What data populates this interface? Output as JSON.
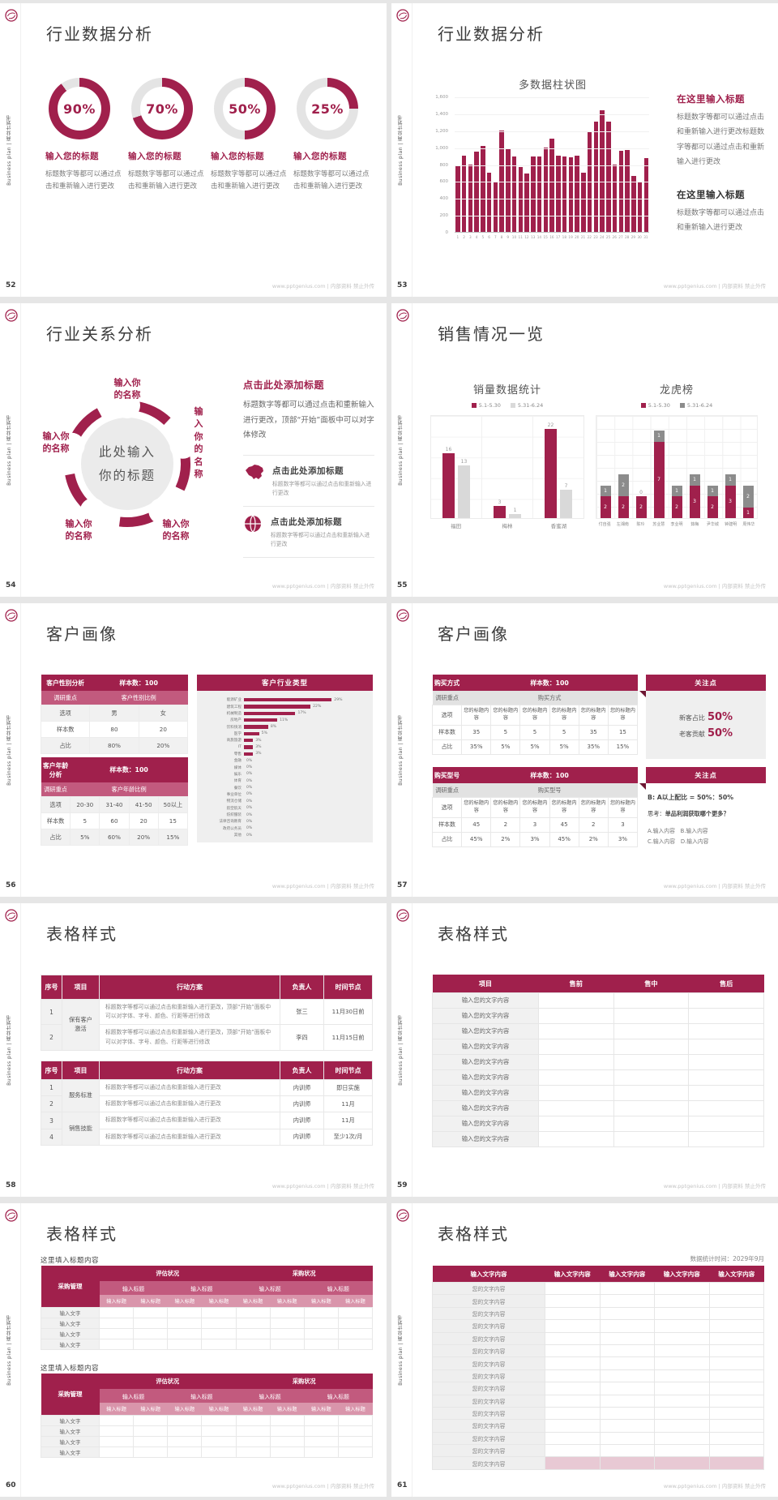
{
  "theme": {
    "primary": "#a0204c",
    "header_mid": "#c25a7e",
    "header_light": "#d995ab",
    "row_gray": "#f1f1f1",
    "bar_light_gray": "#d9d9d9",
    "bar_dark_gray": "#8c8c8c",
    "highlight_pink": "#e8c9d4",
    "track_gray": "#e4e4e4"
  },
  "common": {
    "sidebar_text": "Business plan | 商业计划书",
    "footer_right": "www.pptgenius.com | 内部资料 禁止外传"
  },
  "slides": {
    "s52": {
      "page": "52",
      "title": "行业数据分析",
      "items": [
        {
          "pct": "90%",
          "value": 90,
          "heading": "输入您的标题",
          "body": "标题数字等都可以通过点击和重新输入进行更改"
        },
        {
          "pct": "70%",
          "value": 70,
          "heading": "输入您的标题",
          "body": "标题数字等都可以通过点击和重新输入进行更改"
        },
        {
          "pct": "50%",
          "value": 50,
          "heading": "输入您的标题",
          "body": "标题数字等都可以通过点击和重新输入进行更改"
        },
        {
          "pct": "25%",
          "value": 25,
          "heading": "输入您的标题",
          "body": "标题数字等都可以通过点击和重新输入进行更改"
        }
      ]
    },
    "s53": {
      "page": "53",
      "title": "行业数据分析",
      "chart": {
        "type": "bar",
        "title": "多数据柱状图",
        "categories": [
          "1",
          "2",
          "3",
          "4",
          "5",
          "6",
          "7",
          "8",
          "9",
          "10",
          "11",
          "12",
          "13",
          "14",
          "15",
          "16",
          "17",
          "18",
          "19",
          "20",
          "21",
          "22",
          "23",
          "24",
          "25",
          "26",
          "27",
          "28",
          "29",
          "30",
          "31"
        ],
        "values": [
          790,
          900,
          800,
          950,
          1020,
          700,
          590,
          1200,
          990,
          890,
          770,
          690,
          890,
          890,
          1000,
          1100,
          900,
          890,
          880,
          900,
          700,
          1190,
          1300,
          1440,
          1300,
          800,
          960,
          970,
          660,
          590,
          870
        ],
        "ylim": [
          0,
          1600
        ],
        "yticks": [
          "1,600",
          "1,400",
          "1,200",
          "1,000",
          "800",
          "600",
          "400",
          "200",
          "0"
        ]
      },
      "right": [
        {
          "heading": "在这里输入标题",
          "body": "标题数字等都可以通过点击和重新输入进行更改标题数字等都可以通过点击和重新输入进行更改"
        },
        {
          "heading": "在这里输入标题",
          "body": "标题数字等都可以通过点击和重新输入进行更改"
        }
      ]
    },
    "s54": {
      "page": "54",
      "title": "行业关系分析",
      "diagram": {
        "center": "此处输入\n你的标题",
        "labels": [
          "输入你\n的名称",
          "输入你\n的名称",
          "输入你\n的名称",
          "输入你\n的名称",
          "输入你\n的名称"
        ]
      },
      "right": {
        "heading": "点击此处添加标题",
        "body": "标题数字等都可以通过点击和重新输入进行更改，顶部“开始”面板中可以对字体修改",
        "items": [
          {
            "icon": "china-map-icon",
            "heading": "点击此处添加标题",
            "body": "标题数字等都可以通过点击和重新输入进行更改"
          },
          {
            "icon": "globe-icon",
            "heading": "点击此处添加标题",
            "body": "标题数字等都可以通过点击和重新输入进行更改"
          }
        ]
      }
    },
    "s55": {
      "page": "55",
      "title": "销售情况一览",
      "left": {
        "type": "bar",
        "title": "销量数据统计",
        "categories": [
          "福田",
          "梅林",
          "香蜜湖"
        ],
        "series": [
          {
            "name": "5.1-5.30",
            "color": "#a0204c",
            "values": [
              16,
              3,
              22
            ]
          },
          {
            "name": "5.31-6.24",
            "color": "#d9d9d9",
            "values": [
              13,
              1,
              7
            ]
          }
        ]
      },
      "right": {
        "type": "stacked-bar",
        "title": "龙虎榜",
        "categories": [
          "付自强",
          "左湘南",
          "陈玲",
          "苏业慧",
          "李业明",
          "茹梅",
          "尹华城",
          "钟建明",
          "周伟华"
        ],
        "series": [
          {
            "name": "5.1-5.30",
            "color": "#a0204c",
            "values": [
              2,
              2,
              2,
              7,
              2,
              3,
              2,
              3,
              1
            ]
          },
          {
            "name": "5.31-6.24",
            "color": "#8c8c8c",
            "values": [
              1,
              2,
              0,
              1,
              1,
              1,
              1,
              1,
              2
            ]
          }
        ]
      }
    },
    "s56": {
      "page": "56",
      "title": "客户画像",
      "gender_table": {
        "header": [
          "客户性别分析",
          "样本数：100"
        ],
        "sub": [
          "调研重点",
          "客户性别比例"
        ],
        "rows": [
          [
            "选项",
            "男",
            "女"
          ],
          [
            "样本数",
            "80",
            "20"
          ],
          [
            "占比",
            "80%",
            "20%"
          ]
        ]
      },
      "age_table": {
        "header": [
          "客户年龄分析",
          "样本数：100"
        ],
        "sub": [
          "调研重点",
          "客户年龄比例"
        ],
        "rows": [
          [
            "选项",
            "20-30",
            "31-40",
            "41-50",
            "50以上"
          ],
          [
            "样本数",
            "5",
            "60",
            "20",
            "15"
          ],
          [
            "占比",
            "5%",
            "60%",
            "20%",
            "15%"
          ]
        ]
      },
      "industry": {
        "title": "客户行业类型",
        "items": [
          {
            "label": "能源矿业",
            "pct": 29
          },
          {
            "label": "建筑工程",
            "pct": 22
          },
          {
            "label": "机械制造",
            "pct": 17
          },
          {
            "label": "房地产",
            "pct": 11
          },
          {
            "label": "饮料快消",
            "pct": 8
          },
          {
            "label": "医学",
            "pct": 5
          },
          {
            "label": "商旅旅游",
            "pct": 3
          },
          {
            "label": "IT",
            "pct": 3
          },
          {
            "label": "零售",
            "pct": 3
          },
          {
            "label": "金融",
            "pct": 0
          },
          {
            "label": "媒体",
            "pct": 0
          },
          {
            "label": "娱乐",
            "pct": 0
          },
          {
            "label": "体育",
            "pct": 0
          },
          {
            "label": "餐饮",
            "pct": 0
          },
          {
            "label": "事业单位",
            "pct": 0
          },
          {
            "label": "物流仓储",
            "pct": 0
          },
          {
            "label": "航空航天",
            "pct": 0
          },
          {
            "label": "纺织服装",
            "pct": 0
          },
          {
            "label": "法律咨询教育",
            "pct": 0
          },
          {
            "label": "政府公务员",
            "pct": 0
          },
          {
            "label": "其他",
            "pct": 0
          }
        ]
      }
    },
    "s57": {
      "page": "57",
      "title": "客户画像",
      "blockA": {
        "table": {
          "header": [
            "购买方式",
            "样本数：100"
          ],
          "sub": [
            "调研重点",
            "购买方式"
          ],
          "rows": [
            [
              "选项",
              "您的标题内容",
              "您的标题内容",
              "您的标题内容",
              "您的标题内容",
              "您的标题内容",
              "您的标题内容"
            ],
            [
              "样本数",
              "35",
              "5",
              "5",
              "5",
              "35",
              "15"
            ],
            [
              "占比",
              "35%",
              "5%",
              "5%",
              "5%",
              "35%",
              "15%"
            ]
          ]
        },
        "panel": {
          "title": "关注点",
          "line1": "新客占比",
          "line1v": "50%",
          "line2": "老客贡献",
          "line2v": "50%"
        }
      },
      "blockB": {
        "table": {
          "header": [
            "购买型号",
            "样本数：100"
          ],
          "sub": [
            "调研重点",
            "购买型号"
          ],
          "rows": [
            [
              "选项",
              "您的标题内容",
              "您的标题内容",
              "您的标题内容",
              "您的标题内容",
              "您的标题内容",
              "您的标题内容"
            ],
            [
              "样本数",
              "45",
              "2",
              "3",
              "45",
              "2",
              "3"
            ],
            [
              "占比",
              "45%",
              "2%",
              "3%",
              "45%",
              "2%",
              "3%"
            ]
          ]
        },
        "panel": {
          "title": "关注点",
          "line1": "B: A以上配比 = 50%：50%",
          "line2a": "思考：",
          "line2b": "单品利润获取哪个更多？",
          "line3": "A.输入内容　B.输入内容",
          "line4": "C.输入内容　D.输入内容"
        }
      }
    },
    "s58": {
      "page": "58",
      "title": "表格样式",
      "tableA": {
        "headers": [
          "序号",
          "项目",
          "行动方案",
          "负责人",
          "时间节点"
        ],
        "groups": [
          {
            "label": "保有客户激活",
            "rows": [
              {
                "no": "1",
                "plan": "标题数字等都可以通过点击和重新输入进行更改，顶部“开始”面板中可以对字体、字号、颜色、行距等进行修改",
                "owner": "张三",
                "time": "11月30日前"
              },
              {
                "no": "2",
                "plan": "标题数字等都可以通过点击和重新输入进行更改，顶部“开始”面板中可以对字体、字号、颜色、行距等进行修改",
                "owner": "李四",
                "time": "11月15日前"
              }
            ]
          }
        ]
      },
      "tableB": {
        "headers": [
          "序号",
          "项目",
          "行动方案",
          "负责人",
          "时间节点"
        ],
        "groups": [
          {
            "label": "服务标准",
            "rows": [
              {
                "no": "1",
                "plan": "标题数字等都可以通过点击和重新输入进行更改",
                "owner": "内训师",
                "time": "即日实施"
              },
              {
                "no": "2",
                "plan": "标题数字等都可以通过点击和重新输入进行更改",
                "owner": "内训师",
                "time": "11月"
              }
            ]
          },
          {
            "label": "销售技能",
            "rows": [
              {
                "no": "3",
                "plan": "标题数字等都可以通过点击和重新输入进行更改",
                "owner": "内训师",
                "time": "11月"
              },
              {
                "no": "4",
                "plan": "标题数字等都可以通过点击和重新输入进行更改",
                "owner": "内训师",
                "time": "至少1次/月"
              }
            ]
          }
        ]
      }
    },
    "s59": {
      "page": "59",
      "title": "表格样式",
      "table": {
        "headers": [
          "项目",
          "售前",
          "售中",
          "售后"
        ],
        "row_label": "输入您的文字内容",
        "row_count": 10
      }
    },
    "s60": {
      "page": "60",
      "title": "表格样式",
      "caption": "这里填入标题内容",
      "table": {
        "corner": "采购管理",
        "top": [
          "评估状况",
          "采购状况"
        ],
        "mid": [
          "输入标题",
          "输入标题",
          "输入标题",
          "输入标题"
        ],
        "sub": [
          "输入标题",
          "输入标题",
          "输入标题",
          "输入标题",
          "输入标题",
          "输入标题",
          "输入标题",
          "输入标题"
        ],
        "row_label": "输入文字",
        "row_count": 4
      }
    },
    "s61": {
      "page": "61",
      "title": "表格样式",
      "note": "数据统计时间：2029年9月",
      "table": {
        "headers": [
          "输入文字内容",
          "输入文字内容",
          "输入文字内容",
          "输入文字内容",
          "输入文字内容"
        ],
        "row_label": "您的文字内容",
        "row_count": 15,
        "highlight_last_row": true
      }
    }
  }
}
